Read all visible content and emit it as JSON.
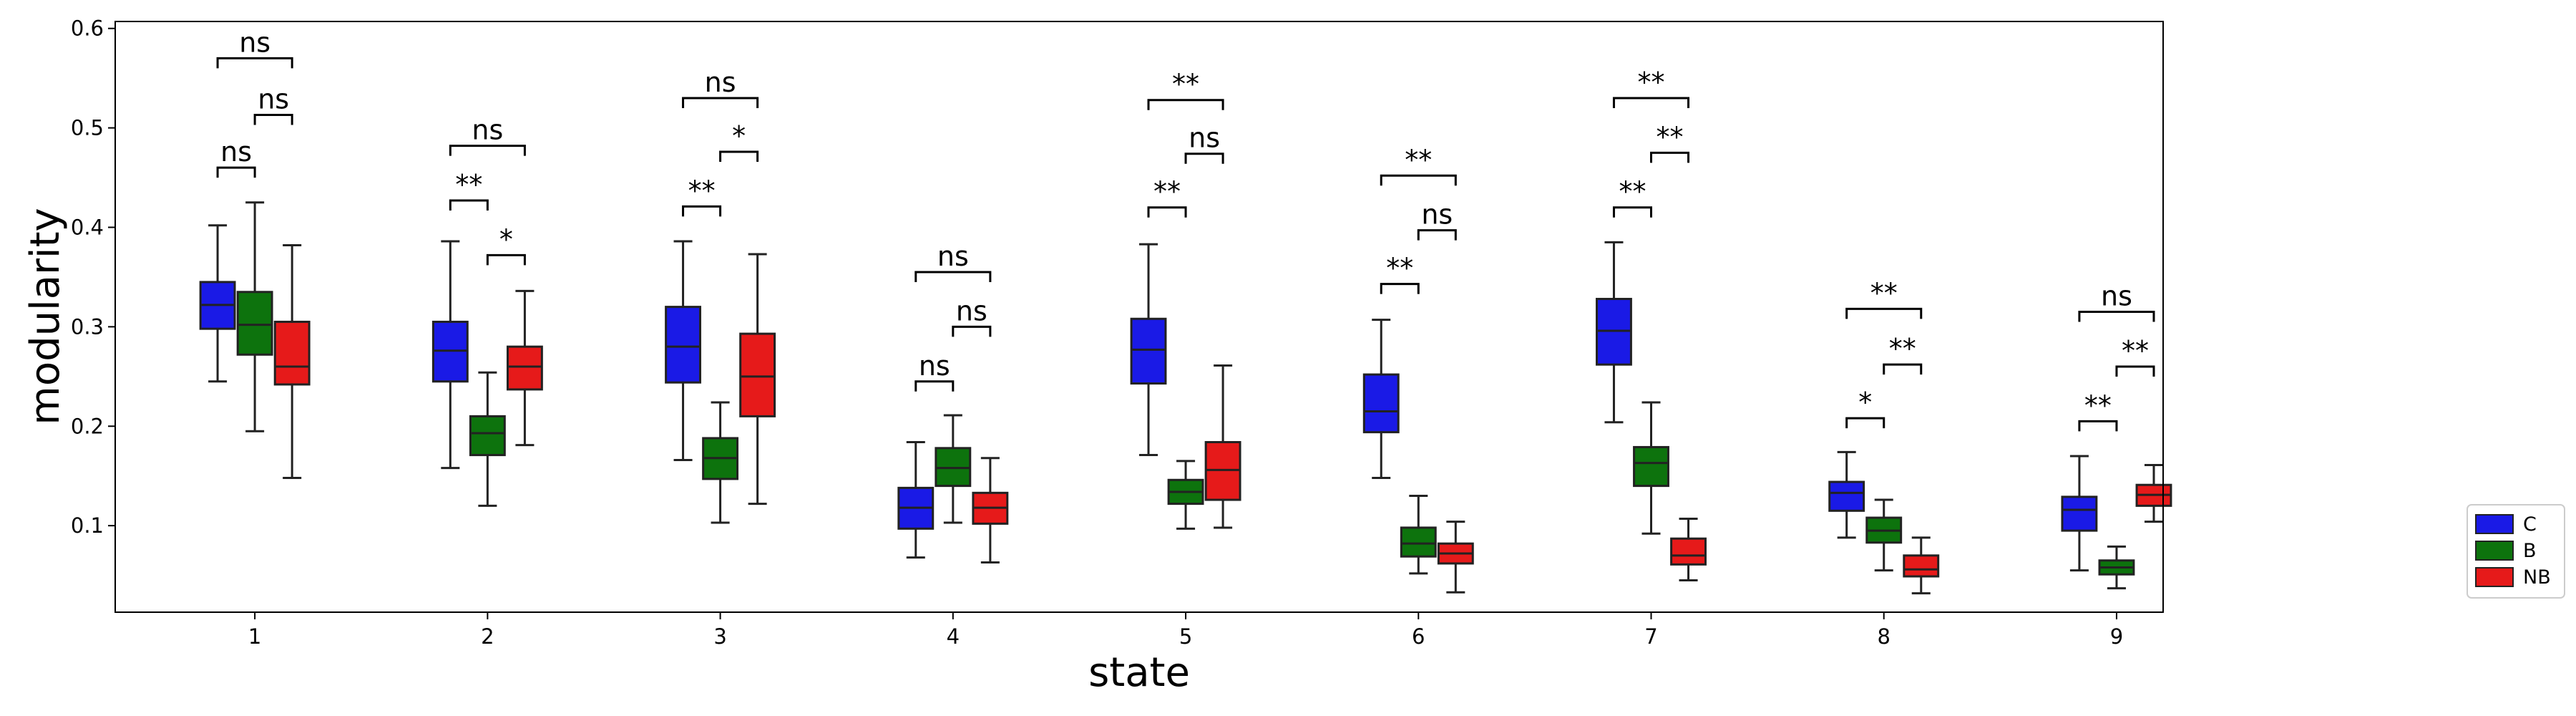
{
  "chart_data": {
    "type": "box",
    "xlabel": "state",
    "ylabel": "modularity",
    "ylim": [
      0.013,
      0.607
    ],
    "yticks": [
      "0.1",
      "0.2",
      "0.3",
      "0.4",
      "0.5",
      "0.6"
    ],
    "ytick_values": [
      0.1,
      0.2,
      0.3,
      0.4,
      0.5,
      0.6
    ],
    "categories": [
      "1",
      "2",
      "3",
      "4",
      "5",
      "6",
      "7",
      "8",
      "9"
    ],
    "legend_position": "outside-right",
    "series": [
      {
        "name": "C",
        "color": "#1a1ae6",
        "boxes": [
          {
            "min": 0.245,
            "q1": 0.298,
            "median": 0.322,
            "q3": 0.345,
            "max": 0.402
          },
          {
            "min": 0.158,
            "q1": 0.245,
            "median": 0.276,
            "q3": 0.305,
            "max": 0.386
          },
          {
            "min": 0.166,
            "q1": 0.244,
            "median": 0.28,
            "q3": 0.32,
            "max": 0.386
          },
          {
            "min": 0.068,
            "q1": 0.097,
            "median": 0.118,
            "q3": 0.138,
            "max": 0.184
          },
          {
            "min": 0.171,
            "q1": 0.243,
            "median": 0.277,
            "q3": 0.308,
            "max": 0.383
          },
          {
            "min": 0.148,
            "q1": 0.194,
            "median": 0.215,
            "q3": 0.252,
            "max": 0.307
          },
          {
            "min": 0.204,
            "q1": 0.262,
            "median": 0.296,
            "q3": 0.328,
            "max": 0.385
          },
          {
            "min": 0.088,
            "q1": 0.115,
            "median": 0.133,
            "q3": 0.144,
            "max": 0.174
          },
          {
            "min": 0.055,
            "q1": 0.095,
            "median": 0.116,
            "q3": 0.129,
            "max": 0.17
          }
        ]
      },
      {
        "name": "B",
        "color": "#0d730d",
        "boxes": [
          {
            "min": 0.195,
            "q1": 0.272,
            "median": 0.302,
            "q3": 0.335,
            "max": 0.425
          },
          {
            "min": 0.12,
            "q1": 0.171,
            "median": 0.193,
            "q3": 0.21,
            "max": 0.254
          },
          {
            "min": 0.103,
            "q1": 0.147,
            "median": 0.168,
            "q3": 0.188,
            "max": 0.224
          },
          {
            "min": 0.103,
            "q1": 0.14,
            "median": 0.158,
            "q3": 0.178,
            "max": 0.211
          },
          {
            "min": 0.097,
            "q1": 0.122,
            "median": 0.134,
            "q3": 0.146,
            "max": 0.165
          },
          {
            "min": 0.052,
            "q1": 0.069,
            "median": 0.082,
            "q3": 0.098,
            "max": 0.13
          },
          {
            "min": 0.092,
            "q1": 0.14,
            "median": 0.163,
            "q3": 0.179,
            "max": 0.224
          },
          {
            "min": 0.055,
            "q1": 0.083,
            "median": 0.095,
            "q3": 0.108,
            "max": 0.126
          },
          {
            "min": 0.037,
            "q1": 0.051,
            "median": 0.058,
            "q3": 0.065,
            "max": 0.079
          }
        ]
      },
      {
        "name": "NB",
        "color": "#e61a1a",
        "boxes": [
          {
            "min": 0.148,
            "q1": 0.242,
            "median": 0.26,
            "q3": 0.305,
            "max": 0.382
          },
          {
            "min": 0.181,
            "q1": 0.237,
            "median": 0.26,
            "q3": 0.28,
            "max": 0.336
          },
          {
            "min": 0.122,
            "q1": 0.21,
            "median": 0.25,
            "q3": 0.293,
            "max": 0.373
          },
          {
            "min": 0.063,
            "q1": 0.102,
            "median": 0.118,
            "q3": 0.133,
            "max": 0.168
          },
          {
            "min": 0.098,
            "q1": 0.126,
            "median": 0.156,
            "q3": 0.184,
            "max": 0.261
          },
          {
            "min": 0.033,
            "q1": 0.062,
            "median": 0.072,
            "q3": 0.082,
            "max": 0.104
          },
          {
            "min": 0.045,
            "q1": 0.061,
            "median": 0.07,
            "q3": 0.087,
            "max": 0.107
          },
          {
            "min": 0.032,
            "q1": 0.049,
            "median": 0.056,
            "q3": 0.07,
            "max": 0.088
          },
          {
            "min": 0.104,
            "q1": 0.12,
            "median": 0.131,
            "q3": 0.141,
            "max": 0.161
          }
        ]
      }
    ],
    "annotations": [
      {
        "state": "1",
        "from": "C",
        "to": "NB",
        "y": 0.57,
        "label": "ns"
      },
      {
        "state": "1",
        "from": "B",
        "to": "NB",
        "y": 0.513,
        "label": "ns"
      },
      {
        "state": "1",
        "from": "C",
        "to": "B",
        "y": 0.46,
        "label": "ns"
      },
      {
        "state": "2",
        "from": "C",
        "to": "NB",
        "y": 0.482,
        "label": "ns"
      },
      {
        "state": "2",
        "from": "C",
        "to": "B",
        "y": 0.427,
        "label": "**"
      },
      {
        "state": "2",
        "from": "B",
        "to": "NB",
        "y": 0.372,
        "label": "*"
      },
      {
        "state": "3",
        "from": "C",
        "to": "NB",
        "y": 0.53,
        "label": "ns"
      },
      {
        "state": "3",
        "from": "B",
        "to": "NB",
        "y": 0.476,
        "label": "*"
      },
      {
        "state": "3",
        "from": "C",
        "to": "B",
        "y": 0.421,
        "label": "**"
      },
      {
        "state": "4",
        "from": "C",
        "to": "NB",
        "y": 0.355,
        "label": "ns"
      },
      {
        "state": "4",
        "from": "B",
        "to": "NB",
        "y": 0.3,
        "label": "ns"
      },
      {
        "state": "4",
        "from": "C",
        "to": "B",
        "y": 0.245,
        "label": "ns"
      },
      {
        "state": "5",
        "from": "C",
        "to": "NB",
        "y": 0.528,
        "label": "**"
      },
      {
        "state": "5",
        "from": "B",
        "to": "NB",
        "y": 0.474,
        "label": "ns"
      },
      {
        "state": "5",
        "from": "C",
        "to": "B",
        "y": 0.42,
        "label": "**"
      },
      {
        "state": "6",
        "from": "C",
        "to": "NB",
        "y": 0.452,
        "label": "**"
      },
      {
        "state": "6",
        "from": "B",
        "to": "NB",
        "y": 0.397,
        "label": "ns"
      },
      {
        "state": "6",
        "from": "C",
        "to": "B",
        "y": 0.343,
        "label": "**"
      },
      {
        "state": "7",
        "from": "C",
        "to": "NB",
        "y": 0.53,
        "label": "**"
      },
      {
        "state": "7",
        "from": "B",
        "to": "NB",
        "y": 0.475,
        "label": "**"
      },
      {
        "state": "7",
        "from": "C",
        "to": "B",
        "y": 0.42,
        "label": "**"
      },
      {
        "state": "8",
        "from": "C",
        "to": "NB",
        "y": 0.318,
        "label": "**"
      },
      {
        "state": "8",
        "from": "B",
        "to": "NB",
        "y": 0.262,
        "label": "**"
      },
      {
        "state": "8",
        "from": "C",
        "to": "B",
        "y": 0.208,
        "label": "*"
      },
      {
        "state": "9",
        "from": "C",
        "to": "NB",
        "y": 0.315,
        "label": "ns"
      },
      {
        "state": "9",
        "from": "B",
        "to": "NB",
        "y": 0.26,
        "label": "**"
      },
      {
        "state": "9",
        "from": "C",
        "to": "B",
        "y": 0.205,
        "label": "**"
      }
    ]
  }
}
